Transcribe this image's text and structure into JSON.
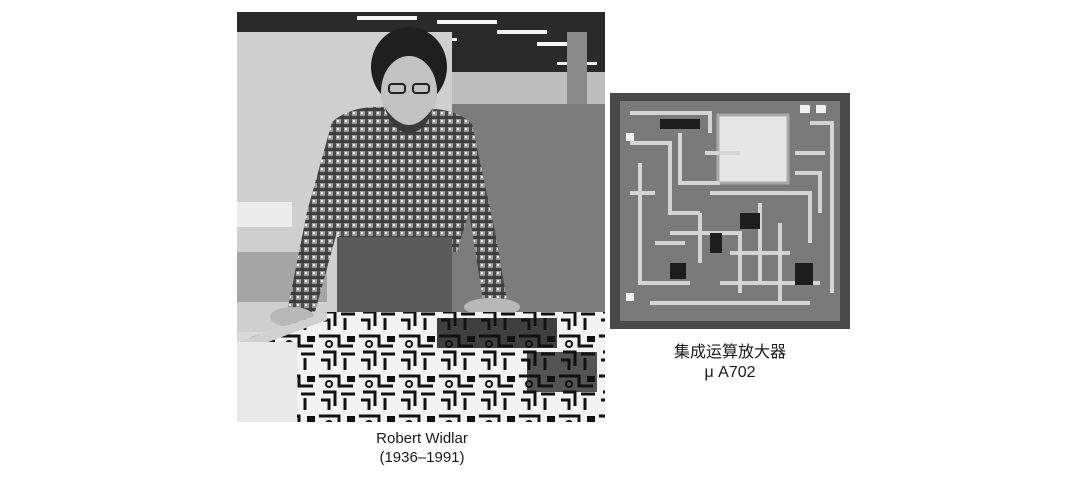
{
  "photo": {
    "caption_name": "Robert Widlar",
    "caption_years": "(1936–1991)"
  },
  "chip": {
    "caption_title": "集成运算放大器",
    "caption_model": "μ A702"
  }
}
